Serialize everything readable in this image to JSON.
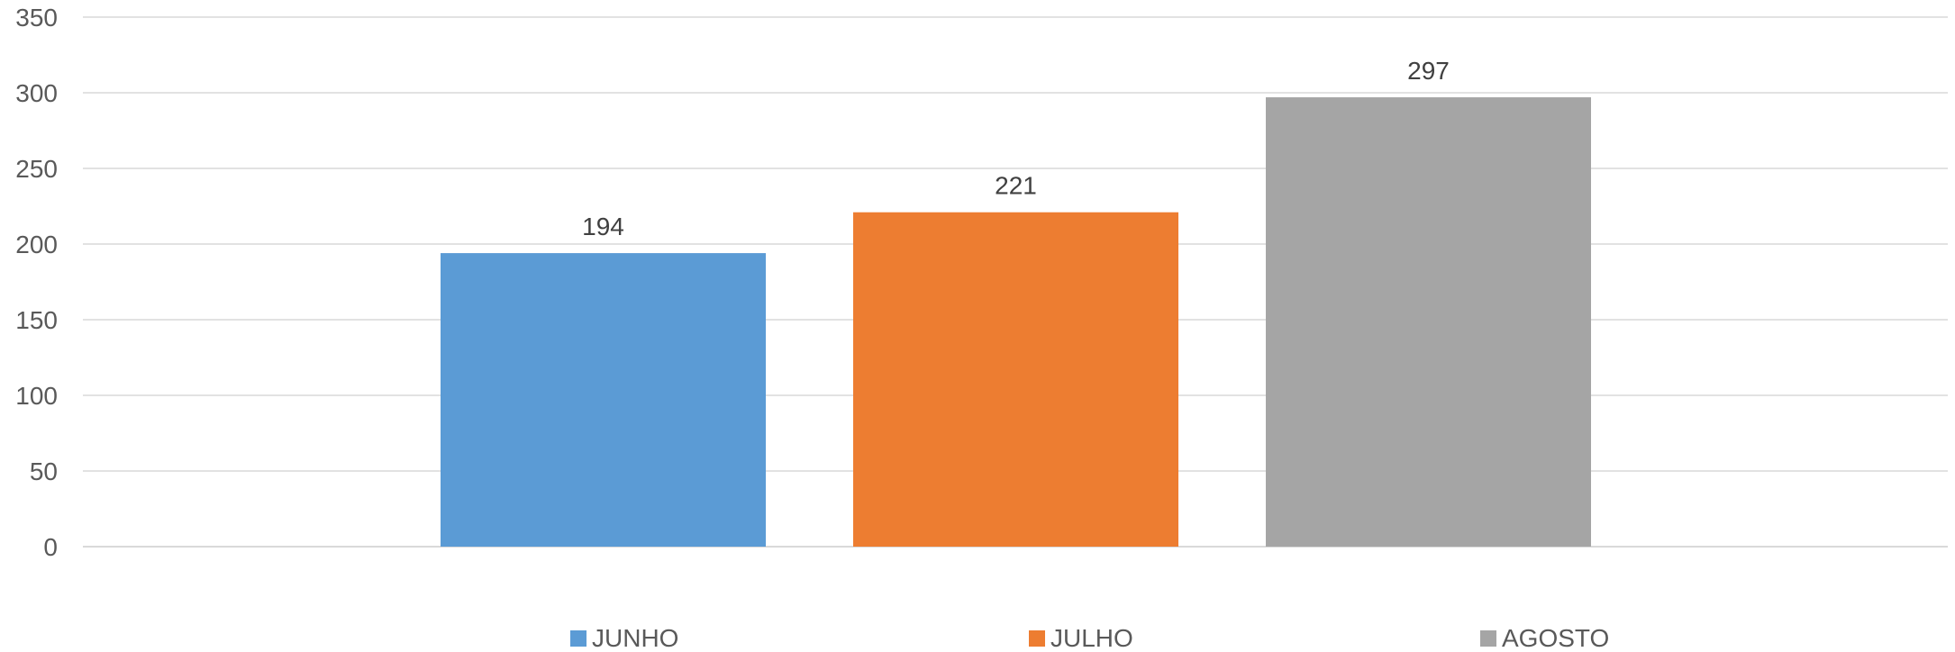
{
  "chart_data": {
    "type": "bar",
    "title": "",
    "xlabel": "",
    "ylabel": "",
    "ylim": [
      0,
      350
    ],
    "yticks": [
      0,
      50,
      100,
      150,
      200,
      250,
      300,
      350
    ],
    "grid": true,
    "legend_position": "bottom",
    "series": [
      {
        "name": "JUNHO",
        "values": [
          194
        ],
        "color": "#5b9bd5"
      },
      {
        "name": "JULHO",
        "values": [
          221
        ],
        "color": "#ed7d31"
      },
      {
        "name": "AGOSTO",
        "values": [
          297
        ],
        "color": "#a5a5a5"
      }
    ],
    "data_labels": true
  }
}
